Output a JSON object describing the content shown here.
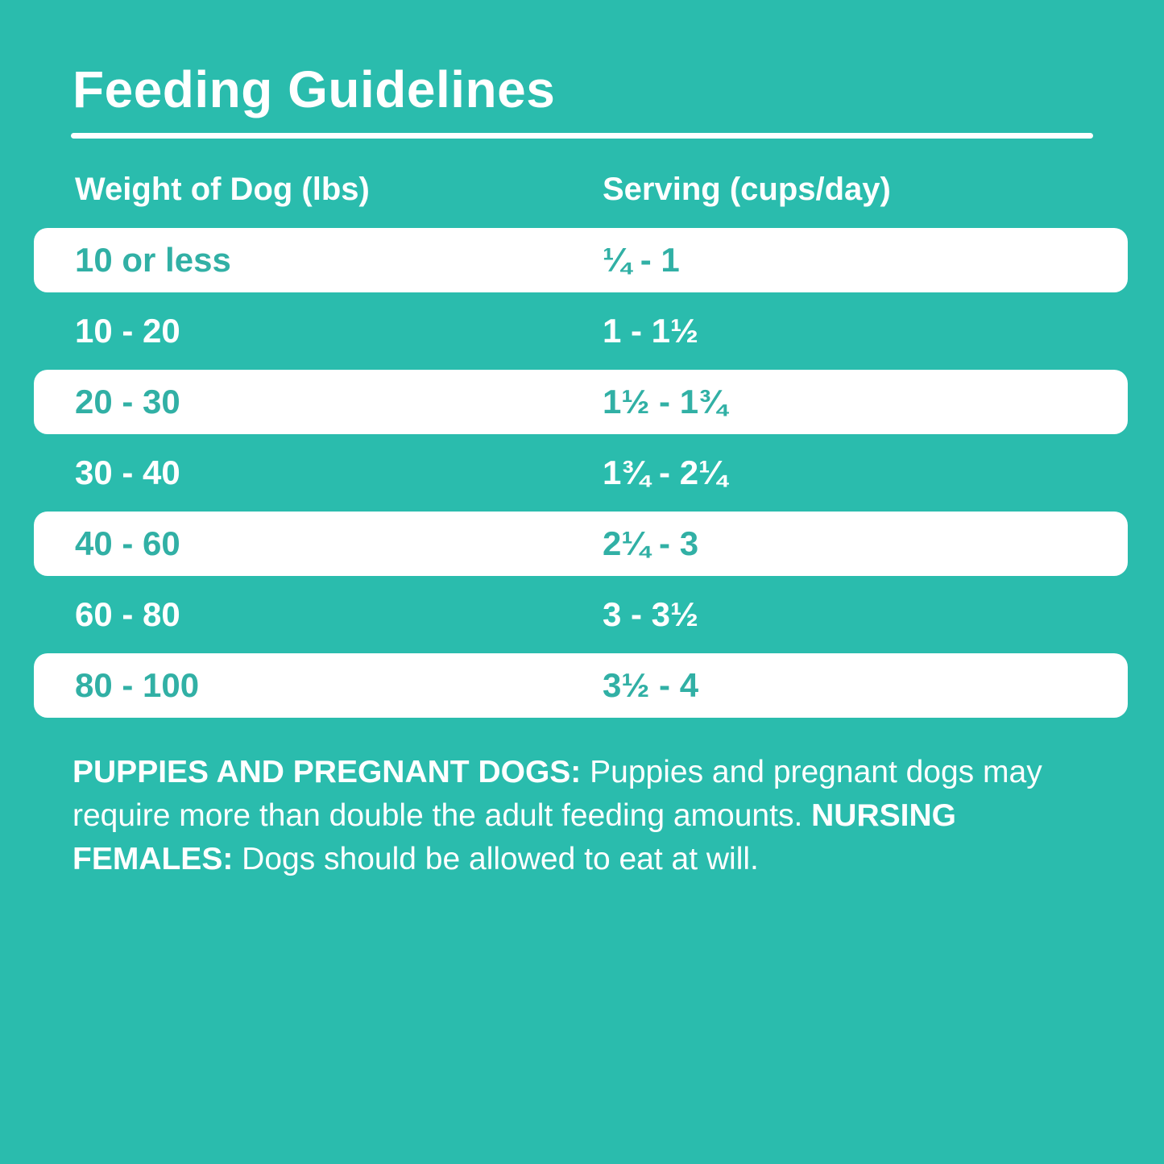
{
  "colors": {
    "background": "#2abcad",
    "highlight_row_bg": "#ffffff",
    "teal_text_on_white": "#31b0a5",
    "white_text": "#ffffff"
  },
  "chart_data": {
    "type": "table",
    "title": "Feeding Guidelines",
    "columns": [
      "Weight of Dog (lbs)",
      "Serving (cups/day)"
    ],
    "rows": [
      [
        "10 or less",
        "¼ - 1"
      ],
      [
        "10 - 20",
        "1 - 1½"
      ],
      [
        "20 - 30",
        "1½ - 1¾"
      ],
      [
        "30 - 40",
        "1¾ - 2¼"
      ],
      [
        "40 - 60",
        "2¼ - 3"
      ],
      [
        "60 - 80",
        "3 - 3½"
      ],
      [
        "80 - 100",
        "3½ - 4"
      ]
    ],
    "layout_hints": {
      "highlighted_row_indices": [
        0,
        2,
        4,
        6
      ],
      "highlight_style": "white rounded band with teal text; other rows teal background with white text"
    }
  },
  "footer": {
    "segments": [
      {
        "text": "PUPPIES AND PREGNANT DOGS: ",
        "bold": true
      },
      {
        "text": "Puppies and pregnant dogs may require more than double the adult feeding amounts. ",
        "bold": false
      },
      {
        "text": "NURSING FEMALES: ",
        "bold": true
      },
      {
        "text": "Dogs should be allowed to eat at will.",
        "bold": false
      }
    ]
  }
}
